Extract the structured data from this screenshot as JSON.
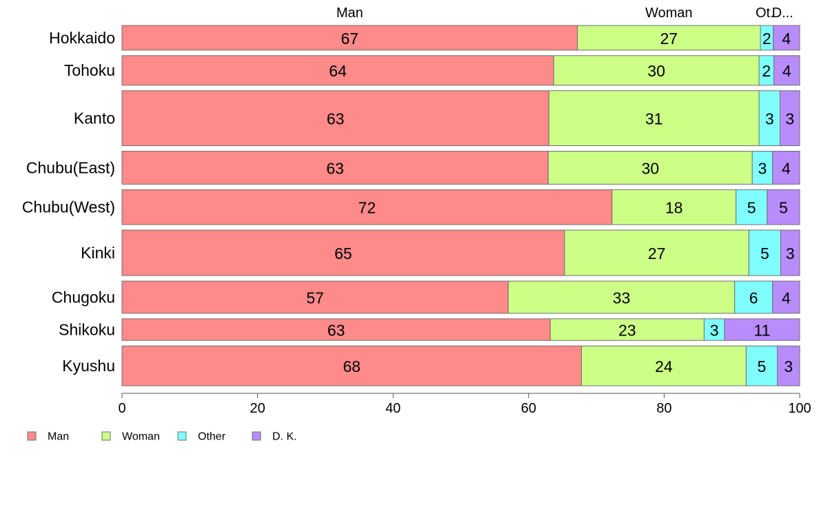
{
  "chart_data": {
    "type": "bar",
    "orientation": "horizontal",
    "stacked": true,
    "categories": [
      "Hokkaido",
      "Tohoku",
      "Kanto",
      "Chubu(East)",
      "Chubu(West)",
      "Kinki",
      "Chugoku",
      "Shikoku",
      "Kyushu"
    ],
    "category_weights": [
      0.65,
      0.78,
      1.45,
      0.87,
      0.92,
      1.2,
      0.85,
      0.57,
      1.05
    ],
    "top_labels": [
      "Man",
      "Woman",
      "Ot.",
      "D..."
    ],
    "series": [
      {
        "name": "Man",
        "color": "#fe8a8a",
        "values": [
          67.2,
          63.7,
          63.0,
          62.9,
          72.3,
          65.3,
          57.0,
          63.2,
          67.8
        ],
        "labels": [
          "67",
          "64",
          "63",
          "63",
          "72",
          "65",
          "57",
          "63",
          "68"
        ]
      },
      {
        "name": "Woman",
        "color": "#cdff87",
        "values": [
          27.0,
          30.3,
          31.0,
          30.1,
          18.3,
          27.2,
          33.4,
          22.7,
          24.3
        ],
        "labels": [
          "27",
          "30",
          "31",
          "30",
          "18",
          "27",
          "33",
          "23",
          "24"
        ]
      },
      {
        "name": "Other",
        "color": "#80fefe",
        "values": [
          1.9,
          2.2,
          3.1,
          3.0,
          4.6,
          4.7,
          5.6,
          3.0,
          4.6
        ],
        "labels": [
          "2",
          "2",
          "3",
          "3",
          "5",
          "5",
          "6",
          "3",
          "5"
        ]
      },
      {
        "name": "D. K.",
        "color": "#b98cfc",
        "values": [
          3.9,
          3.8,
          2.9,
          4.0,
          4.8,
          2.8,
          4.0,
          11.1,
          3.3
        ],
        "labels": [
          "4",
          "4",
          "3",
          "4",
          "5",
          "3",
          "4",
          "11",
          "3"
        ]
      }
    ],
    "xlim": [
      0,
      100
    ],
    "xticks": [
      "0",
      "20",
      "40",
      "60",
      "80",
      "100"
    ],
    "grid": false,
    "legend_position": "bottom-left"
  }
}
